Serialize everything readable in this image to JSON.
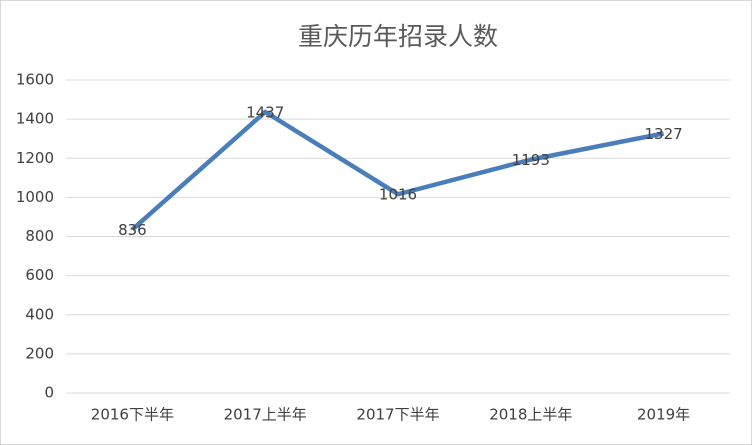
{
  "chart_data": {
    "type": "line",
    "title": "重庆历年招录人数",
    "categories": [
      "2016下半年",
      "2017上半年",
      "2017下半年",
      "2018上半年",
      "2019年"
    ],
    "values": [
      836,
      1437,
      1016,
      1193,
      1327
    ],
    "color": "#4a7ebb",
    "ylim": [
      0,
      1600
    ],
    "yticks": [
      0,
      200,
      400,
      600,
      800,
      1000,
      1200,
      1400,
      1600
    ],
    "grid": true
  }
}
